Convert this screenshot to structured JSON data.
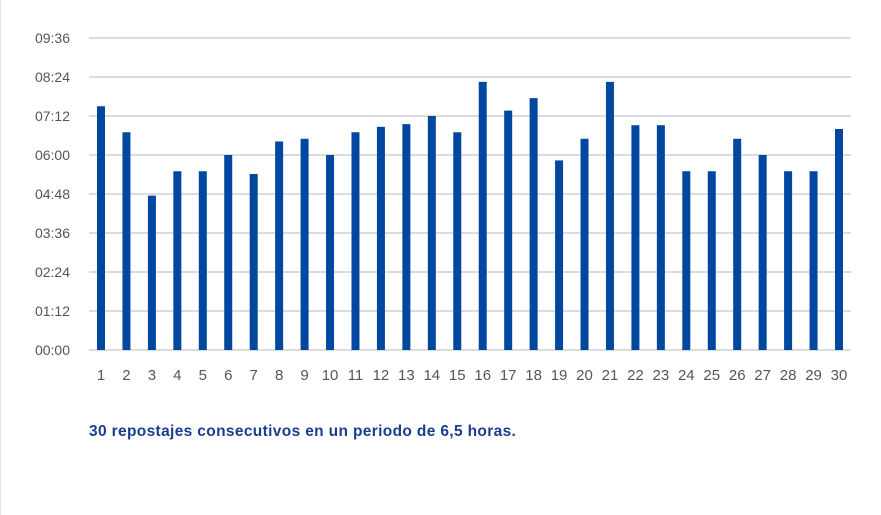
{
  "chart_data": {
    "type": "bar",
    "categories": [
      "1",
      "2",
      "3",
      "4",
      "5",
      "6",
      "7",
      "8",
      "9",
      "10",
      "11",
      "12",
      "13",
      "14",
      "15",
      "16",
      "17",
      "18",
      "19",
      "20",
      "21",
      "22",
      "23",
      "24",
      "25",
      "26",
      "27",
      "28",
      "29",
      "30"
    ],
    "values": [
      "07:30",
      "06:42",
      "04:45",
      "05:30",
      "05:30",
      "06:00",
      "05:25",
      "06:25",
      "06:30",
      "06:00",
      "06:42",
      "06:52",
      "06:57",
      "07:12",
      "06:42",
      "08:15",
      "07:22",
      "07:45",
      "05:50",
      "06:30",
      "08:15",
      "06:55",
      "06:55",
      "05:30",
      "05:30",
      "06:30",
      "06:00",
      "05:30",
      "05:30",
      "06:48"
    ],
    "y_ticks": [
      "00:00",
      "01:12",
      "02:24",
      "03:36",
      "04:48",
      "06:00",
      "07:12",
      "08:24",
      "09:36"
    ],
    "ylim": [
      "00:00",
      "09:36"
    ],
    "title": "",
    "xlabel": "",
    "ylabel": "",
    "grid": true,
    "legend": false,
    "bar_color": "#0047a0",
    "grid_color": "#dcdcdc",
    "tick_label_color": "#555555"
  },
  "caption": "30 repostajes consecutivos en un periodo de 6,5 horas."
}
